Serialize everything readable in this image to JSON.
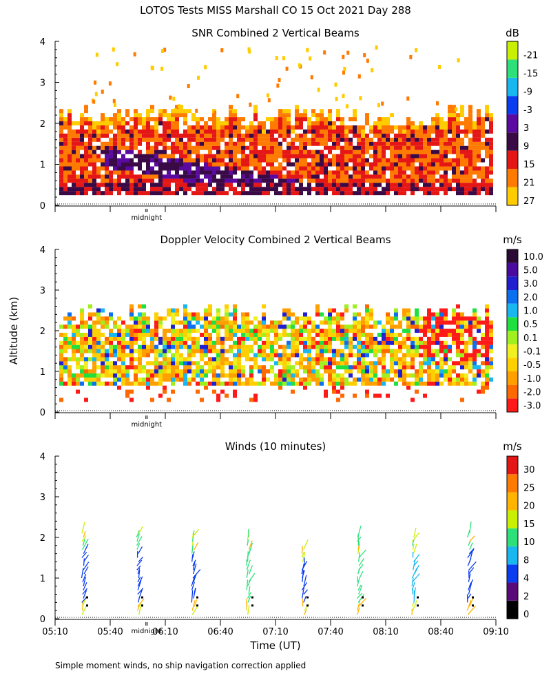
{
  "figure_title": "LOTOS Tests MISS Marshall CO  15 Oct 2021 Day 288",
  "ylabel": "Altitude (km)",
  "xlabel": "Time (UT)",
  "footnote": "Simple moment winds, no ship navigation correction applied",
  "midnight_label": "midnight",
  "x_ticks": [
    "05:10",
    "05:40",
    "06:10",
    "06:40",
    "07:10",
    "07:40",
    "08:10",
    "08:40",
    "09:10"
  ],
  "y_ticks": [
    "0",
    "1",
    "2",
    "3",
    "4"
  ],
  "chart_data": [
    {
      "type": "heatmap",
      "title": "SNR Combined 2 Vertical Beams",
      "unit": "dB",
      "ylim": [
        0,
        4
      ],
      "colorbar": {
        "labels": [
          "-21",
          "-15",
          "-9",
          "-3",
          "3",
          "9",
          "15",
          "21",
          "27"
        ],
        "colors": [
          "#c8f000",
          "#2ee07a",
          "#19b7f0",
          "#0a3cf0",
          "#5a0aa0",
          "#3a0a46",
          "#e51616",
          "#ff7a00",
          "#ffcc00"
        ]
      },
      "time_range": [
        "05:10",
        "09:10"
      ],
      "features": {
        "echo_top_km": 2.2,
        "strong_layer": "-3 to 9 dB descending from ~1.3 km at 05:40 to ~0.3 km at 07:00"
      }
    },
    {
      "type": "heatmap",
      "title": "Doppler Velocity Combined 2 Vertical Beams",
      "unit": "m/s",
      "ylim": [
        0,
        4
      ],
      "colorbar": {
        "labels": [
          "10.0",
          "5.0",
          "3.0",
          "2.0",
          "1.0",
          "0.5",
          "0.1",
          "-0.1",
          "-0.5",
          "-1.0",
          "-2.0",
          "-3.0"
        ],
        "colors": [
          "#2a0a35",
          "#4a0aa0",
          "#2020d0",
          "#0a70f0",
          "#19b7f0",
          "#20e040",
          "#a0f020",
          "#f0f020",
          "#ffd000",
          "#ffa000",
          "#ff6a00",
          "#ff1a1a"
        ]
      },
      "time_range": [
        "05:10",
        "09:10"
      ],
      "features": {
        "echo_layer_km": [
          0.5,
          2.4
        ]
      }
    },
    {
      "type": "scatter",
      "title": "Winds (10 minutes)",
      "unit": "m/s",
      "ylim": [
        0,
        4
      ],
      "colorbar": {
        "labels": [
          "30",
          "25",
          "20",
          "15",
          "10",
          "8",
          "4",
          "2",
          "0"
        ],
        "colors": [
          "#e51616",
          "#ff7a00",
          "#ffb400",
          "#c8f000",
          "#2ee07a",
          "#19b7f0",
          "#0a3cf0",
          "#5a0a78",
          "#000000"
        ]
      },
      "profile_times": [
        "05:25",
        "05:55",
        "06:25",
        "06:55",
        "07:25",
        "07:55",
        "08:25",
        "08:55"
      ],
      "profile_top_km": [
        2.2,
        2.2,
        2.1,
        2.1,
        1.8,
        2.1,
        2.1,
        2.2
      ],
      "dominant_speed_m_s": [
        4,
        4,
        4,
        10,
        4,
        10,
        8,
        4
      ]
    }
  ]
}
